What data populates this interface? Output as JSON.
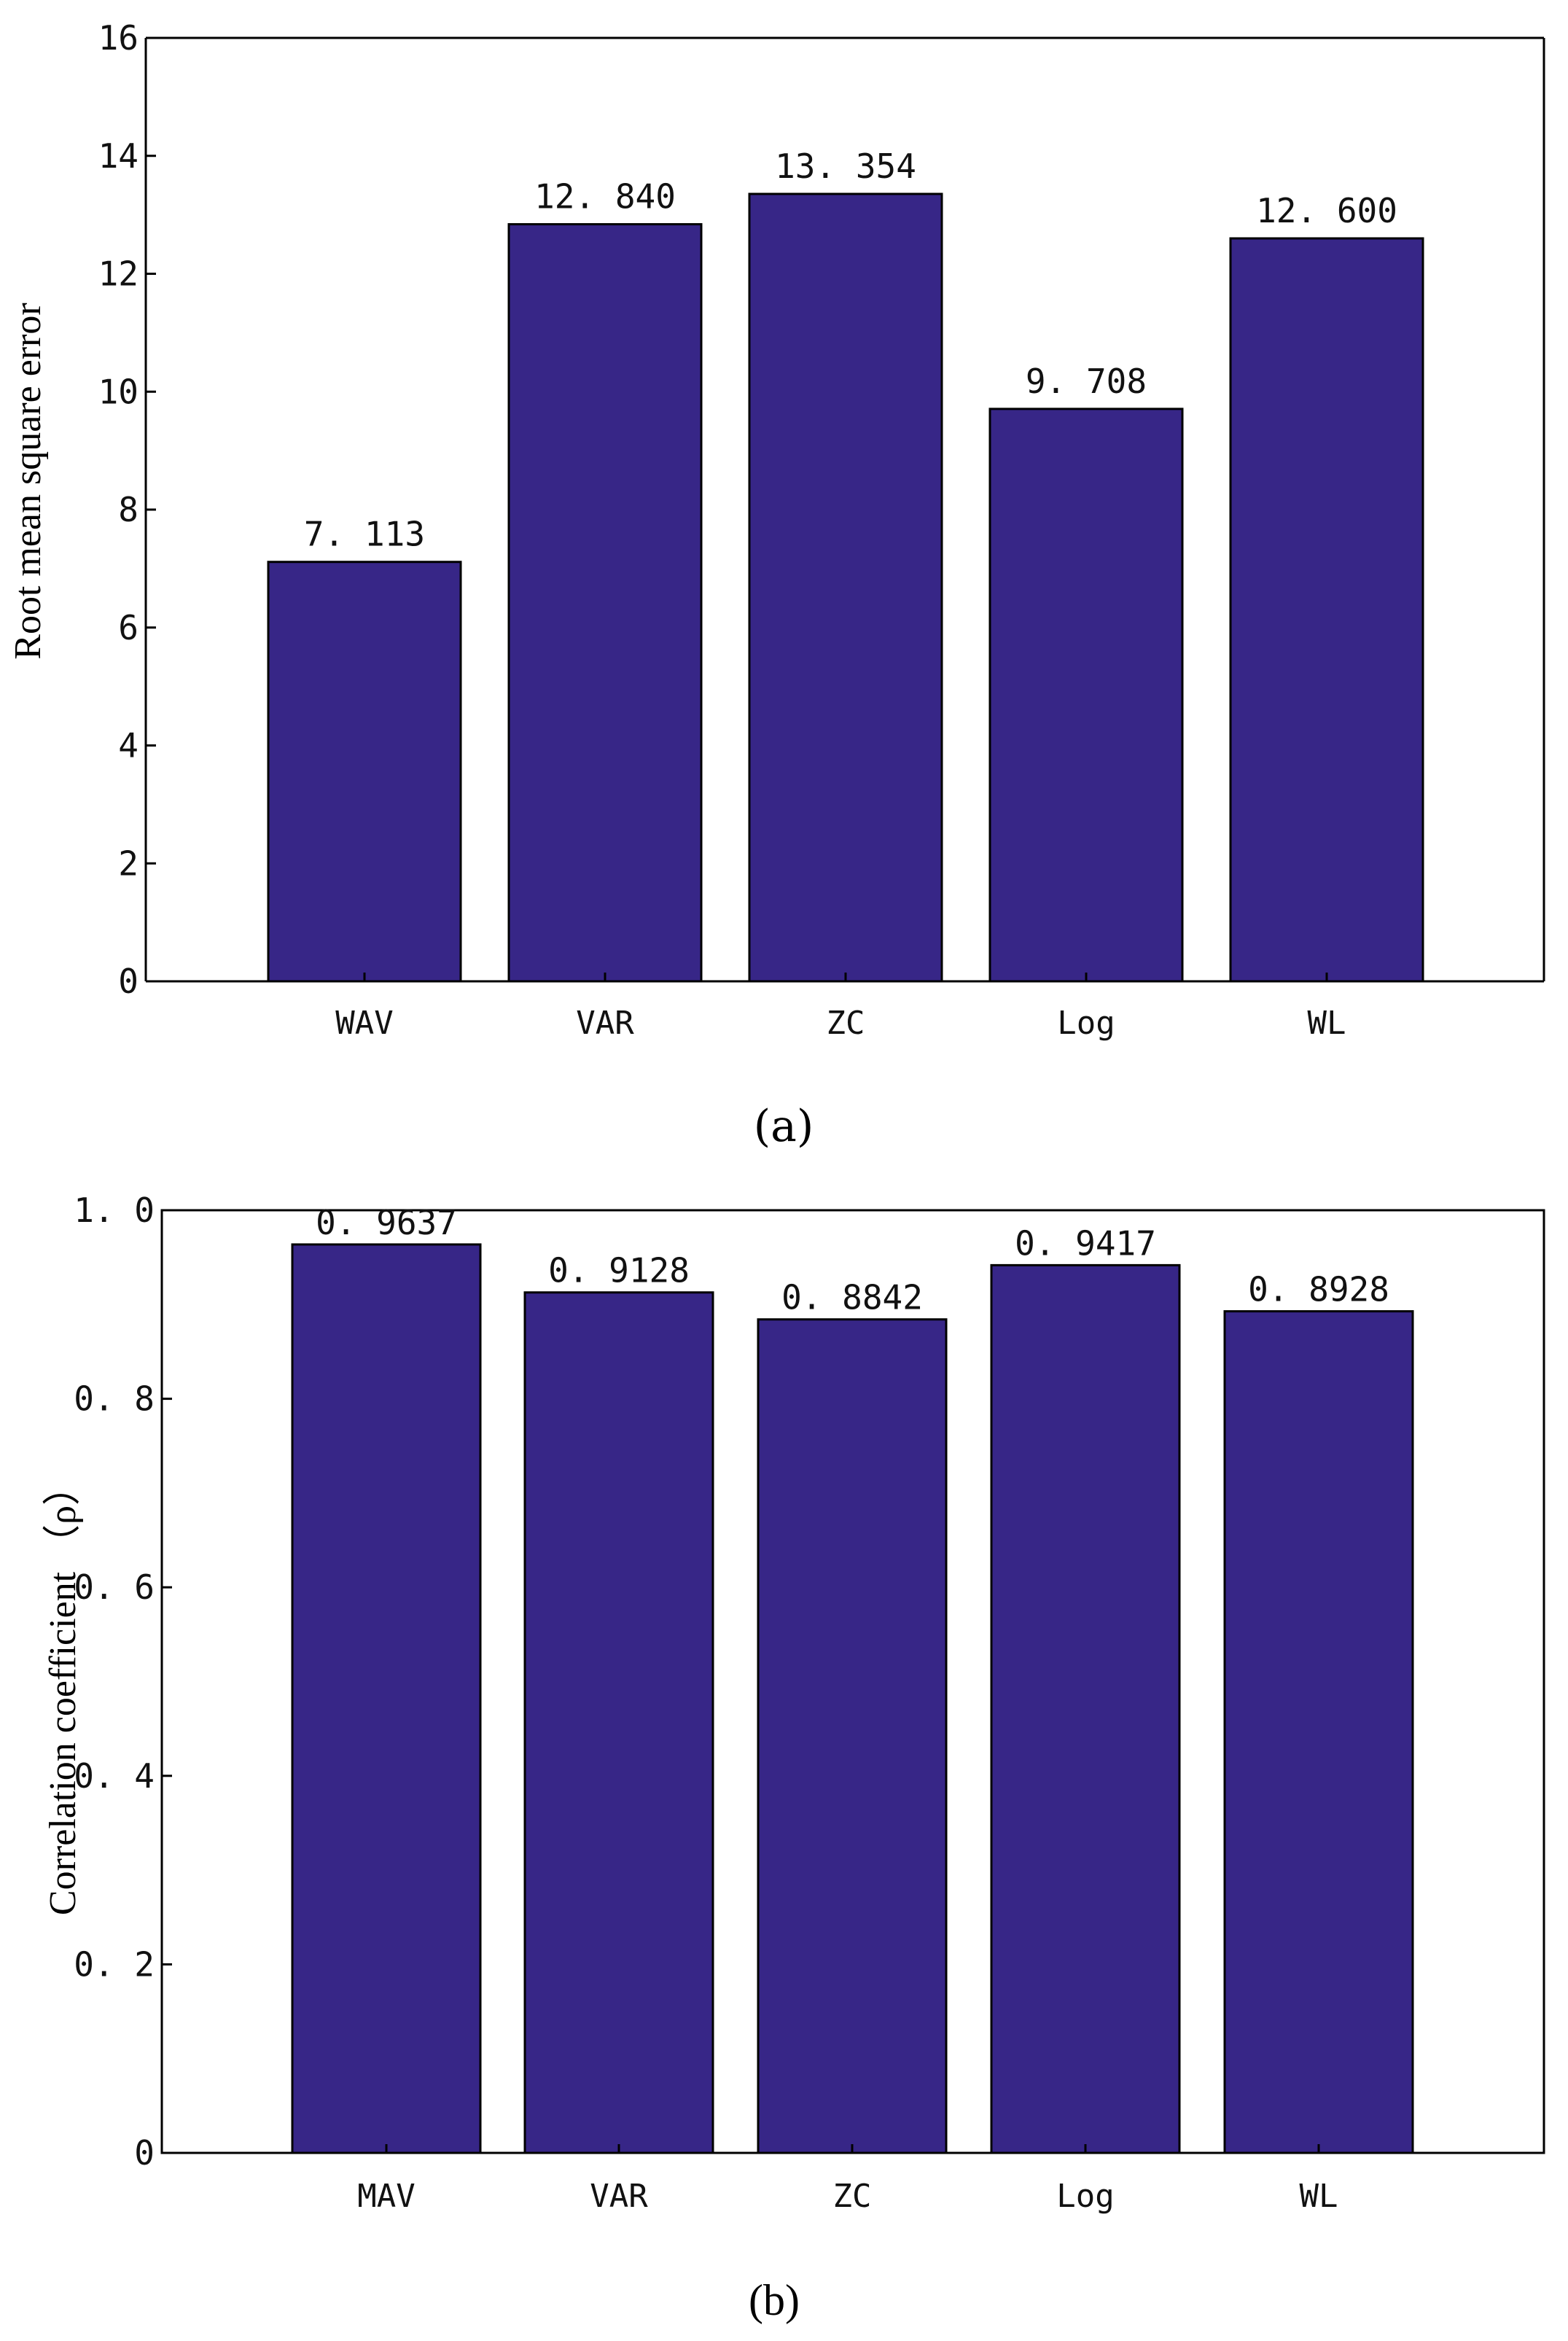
{
  "figure": {
    "captions": [
      "(a)",
      "(b)"
    ]
  },
  "chart_data": [
    {
      "type": "bar",
      "panel": "(a)",
      "categories": [
        "WAV",
        "VAR",
        "ZC",
        "Log",
        "WL"
      ],
      "values": [
        7.113,
        12.84,
        13.354,
        9.708,
        12.6
      ],
      "value_labels": [
        "7. 113",
        "12. 840",
        "13. 354",
        "9. 708",
        "12. 600"
      ],
      "title": "",
      "xlabel": "",
      "ylabel": "Root mean square error",
      "ylim": [
        0,
        16
      ],
      "yticks": [
        0,
        2,
        4,
        6,
        8,
        10,
        12,
        14,
        16
      ],
      "ytick_labels": [
        "0",
        "2",
        "4",
        "6",
        "8",
        "10",
        "12",
        "14",
        "16"
      ],
      "bar_color": "#372687",
      "grid": false
    },
    {
      "type": "bar",
      "panel": "(b)",
      "categories": [
        "MAV",
        "VAR",
        "ZC",
        "Log",
        "WL"
      ],
      "values": [
        0.9637,
        0.9128,
        0.8842,
        0.9417,
        0.8928
      ],
      "value_labels": [
        "0. 9637",
        "0. 9128",
        "0. 8842",
        "0. 9417",
        "0. 8928"
      ],
      "title": "",
      "xlabel": "",
      "ylabel": "Correlation coefficient （ρ）",
      "ylim": [
        0,
        1.0
      ],
      "yticks": [
        0,
        0.2,
        0.4,
        0.6,
        0.8,
        1.0
      ],
      "ytick_labels": [
        "0",
        "0. 2",
        "0. 4",
        "0. 6",
        "0. 8",
        "1. 0"
      ],
      "bar_color": "#372687",
      "grid": false
    }
  ]
}
